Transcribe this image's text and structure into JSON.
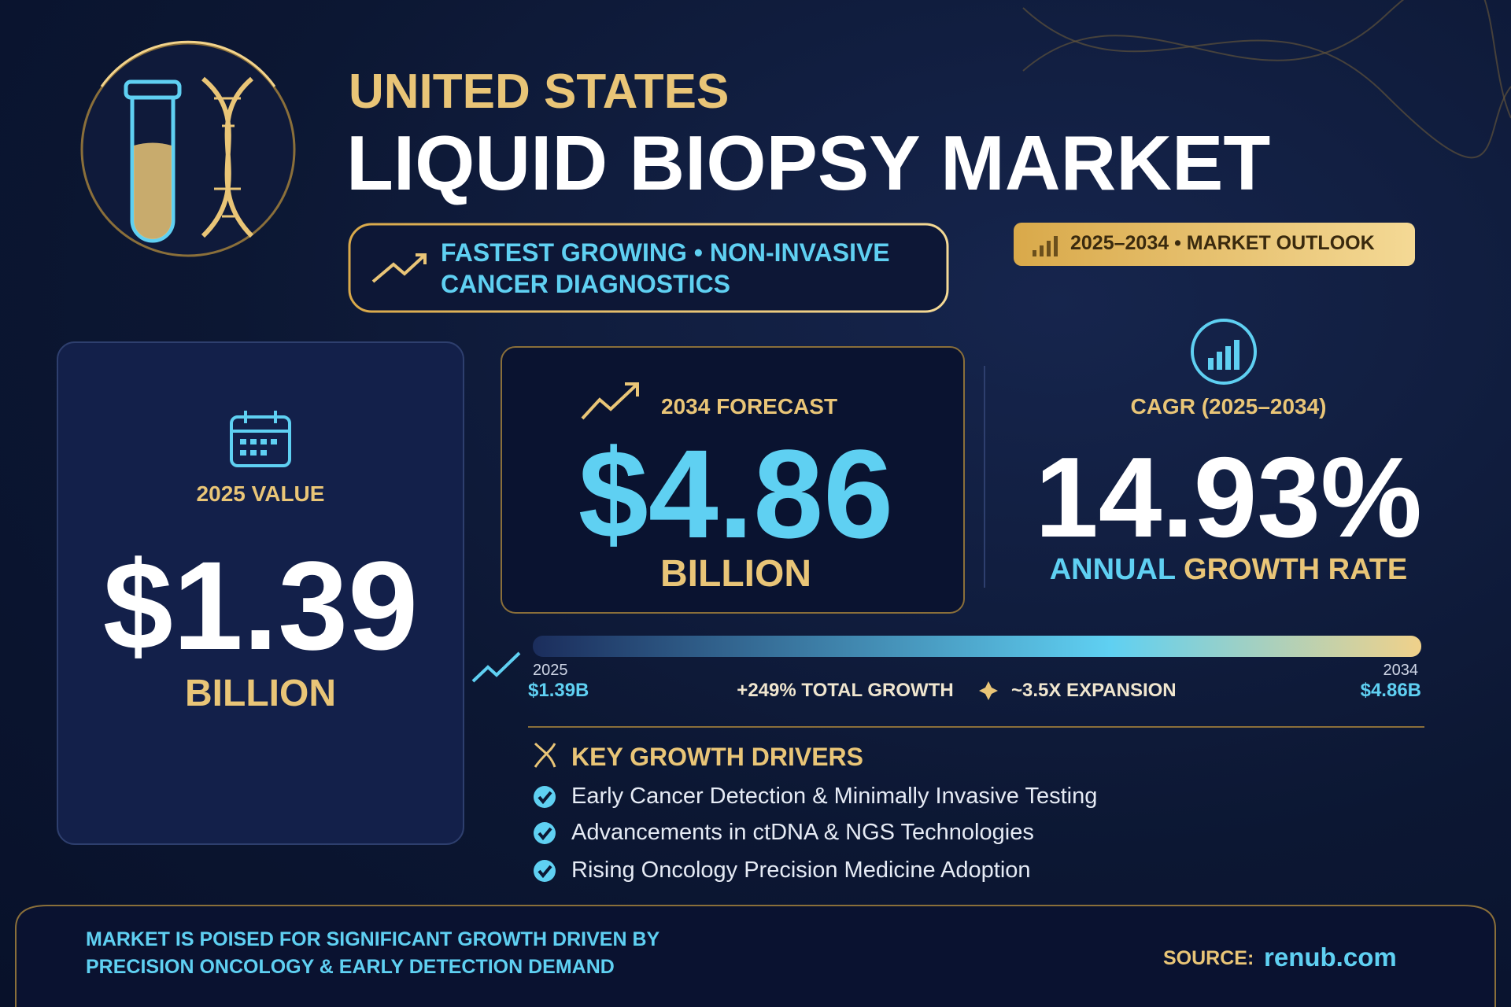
{
  "header": {
    "line1": "UNITED STATES",
    "line2": "LIQUID BIOPSY MARKET"
  },
  "tagline": {
    "line1": "FASTEST GROWING • NON-INVASIVE",
    "line2": "CANCER DIAGNOSTICS"
  },
  "outlook": "2025–2034 • MARKET OUTLOOK",
  "value_2025": {
    "label": "2025 VALUE",
    "amount": "$1.39",
    "unit": "BILLION"
  },
  "forecast": {
    "label": "2034 FORECAST",
    "amount": "$4.86",
    "unit": "BILLION"
  },
  "cagr": {
    "label": "CAGR (2025–2034)",
    "amount": "14.93%",
    "caption": [
      "ANNUAL",
      "GROWTH RATE"
    ]
  },
  "timeline": {
    "start_year": "2025",
    "start_value": "$1.39B",
    "end_year": "2034",
    "end_value": "$4.86B",
    "growth": "+249% TOTAL GROWTH",
    "expansion": "~3.5X EXPANSION"
  },
  "drivers": {
    "title": "KEY GROWTH DRIVERS",
    "items": [
      "Early Cancer Detection & Minimally Invasive Testing",
      "Advancements in ctDNA & NGS Technologies",
      "Rising Oncology Precision Medicine Adoption"
    ]
  },
  "footer": {
    "message": [
      "MARKET IS POISED FOR SIGNIFICANT GROWTH DRIVEN BY",
      "PRECISION ONCOLOGY & EARLY DETECTION DEMAND"
    ],
    "source_label": "SOURCE:",
    "source": "renub.com"
  }
}
